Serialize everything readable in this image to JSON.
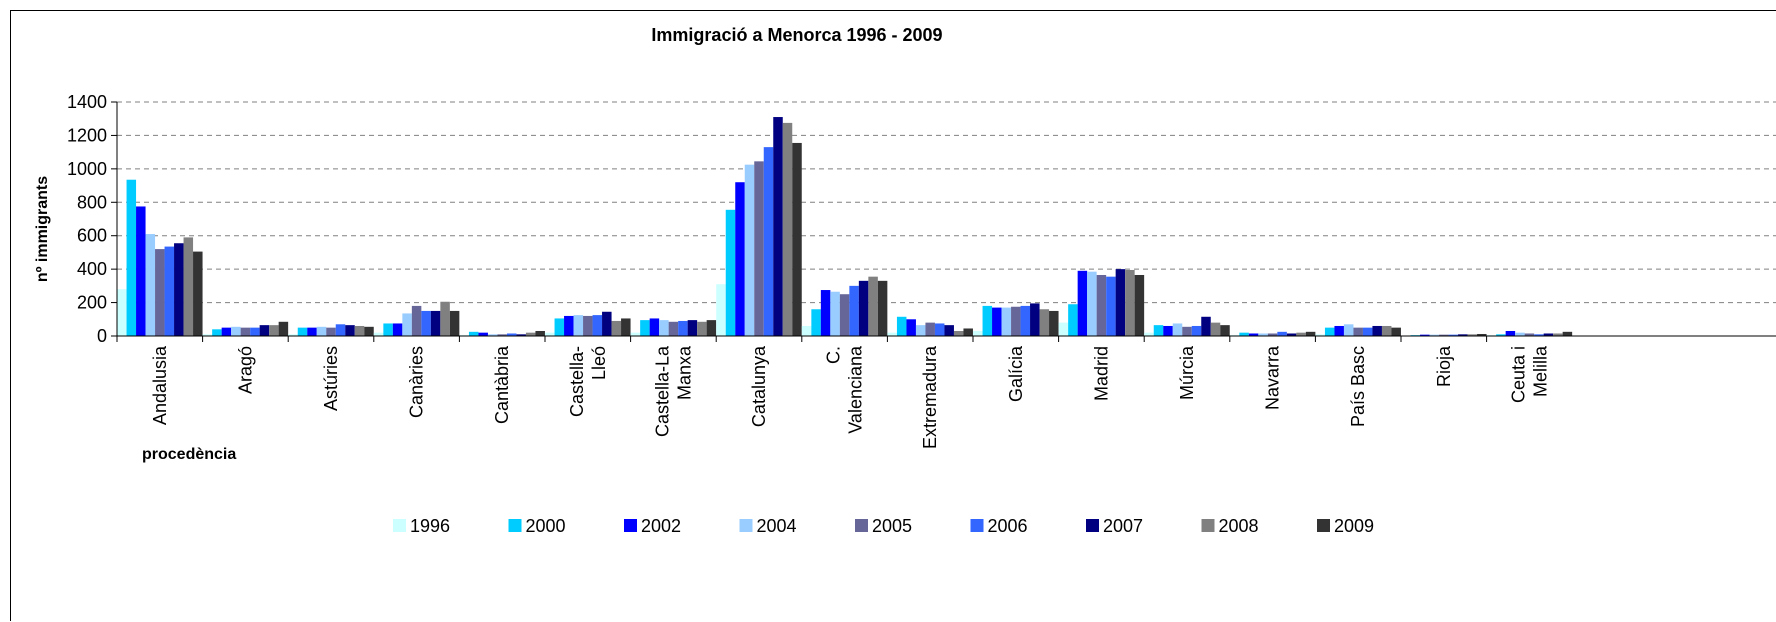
{
  "chart_data": {
    "type": "bar",
    "title": "Immigració a Menorca 1996 - 2009",
    "xlabel": "procedència",
    "ylabel": "nº immigrants",
    "ylim": [
      0,
      1400
    ],
    "yticks": [
      0,
      200,
      400,
      600,
      800,
      1000,
      1200,
      1400
    ],
    "grid": "horizontal dashed",
    "legend_position": "bottom",
    "categories": [
      [
        "Andalusia"
      ],
      [
        "Aragó"
      ],
      [
        "Astúries"
      ],
      [
        "Canàries"
      ],
      [
        "Cantàbria"
      ],
      [
        "Castella-",
        "Lleó"
      ],
      [
        "Castella-La",
        "Manxa"
      ],
      [
        "Catalunya"
      ],
      [
        "C.",
        "Valenciana"
      ],
      [
        "Extremadura"
      ],
      [
        "Galícia"
      ],
      [
        "Madrid"
      ],
      [
        "Múrcia"
      ],
      [
        "Navarra"
      ],
      [
        "País Basc"
      ],
      [
        "Rioja"
      ],
      [
        "Ceuta i",
        "Melilla"
      ]
    ],
    "series": [
      {
        "name": "1996",
        "color": "#ccffff",
        "values": [
          280,
          10,
          10,
          20,
          5,
          20,
          20,
          310,
          60,
          20,
          30,
          80,
          20,
          5,
          10,
          3,
          5
        ]
      },
      {
        "name": "2000",
        "color": "#00ccff",
        "values": [
          935,
          40,
          50,
          75,
          25,
          105,
          95,
          755,
          160,
          115,
          180,
          190,
          65,
          20,
          50,
          5,
          10
        ]
      },
      {
        "name": "2002",
        "color": "#0000ff",
        "values": [
          775,
          50,
          50,
          75,
          20,
          120,
          105,
          920,
          275,
          100,
          170,
          390,
          60,
          15,
          60,
          8,
          30
        ]
      },
      {
        "name": "2004",
        "color": "#99ccff",
        "values": [
          610,
          55,
          55,
          135,
          10,
          125,
          95,
          1025,
          265,
          65,
          170,
          385,
          75,
          15,
          70,
          8,
          20
        ]
      },
      {
        "name": "2005",
        "color": "#666699",
        "values": [
          520,
          50,
          50,
          180,
          10,
          120,
          85,
          1045,
          250,
          80,
          175,
          365,
          55,
          15,
          50,
          8,
          15
        ]
      },
      {
        "name": "2006",
        "color": "#3366ff",
        "values": [
          535,
          50,
          70,
          150,
          15,
          125,
          90,
          1130,
          300,
          75,
          180,
          355,
          60,
          25,
          50,
          8,
          10
        ]
      },
      {
        "name": "2007",
        "color": "#000080",
        "values": [
          555,
          65,
          65,
          150,
          10,
          145,
          95,
          1310,
          330,
          65,
          195,
          400,
          115,
          15,
          60,
          10,
          15
        ]
      },
      {
        "name": "2008",
        "color": "#808080",
        "values": [
          590,
          65,
          60,
          205,
          20,
          90,
          85,
          1275,
          355,
          30,
          160,
          395,
          80,
          20,
          60,
          10,
          15
        ]
      },
      {
        "name": "2009",
        "color": "#333333",
        "values": [
          505,
          85,
          55,
          150,
          30,
          105,
          95,
          1155,
          330,
          45,
          150,
          365,
          65,
          25,
          50,
          12,
          25
        ]
      }
    ]
  }
}
